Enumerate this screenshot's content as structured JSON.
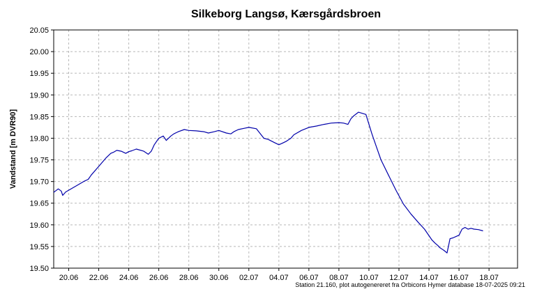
{
  "chart_data": {
    "type": "line",
    "title": "Silkeborg Langsø, Kærsgårdsbroen",
    "ylabel": "Vandstand [m DVR90]",
    "xlabel": "",
    "ylim": [
      19.5,
      20.05
    ],
    "yticks": [
      "19.50",
      "19.55",
      "19.60",
      "19.65",
      "19.70",
      "19.75",
      "19.80",
      "19.85",
      "19.90",
      "19.95",
      "20.00",
      "20.05"
    ],
    "xlim_days": [
      0,
      30.9
    ],
    "xtick_labels": [
      "20.06",
      "22.06",
      "24.06",
      "26.06",
      "28.06",
      "30.06",
      "02.07",
      "04.07",
      "06.07",
      "08.07",
      "10.07",
      "12.07",
      "14.07",
      "16.07",
      "18.07"
    ],
    "grid": true,
    "line_color": "#0000aa",
    "footnote": "Station 21.160, plot autogenereret fra Orbicons Hymer database 18-07-2025 09:21",
    "series": [
      {
        "x": [
          0,
          0.3,
          0.5,
          0.6,
          0.8,
          1.0,
          1.5,
          2.0,
          2.3,
          2.5,
          3.0,
          3.5,
          3.8,
          4.0,
          4.2,
          4.5,
          4.8,
          5.0,
          5.2,
          5.5,
          6.0,
          6.3,
          6.5,
          6.7,
          7.0,
          7.3,
          7.5,
          7.8,
          8.0,
          8.3,
          8.7,
          9.0,
          9.5,
          10.0,
          10.3,
          10.7,
          11.0,
          11.5,
          11.8,
          12.0,
          12.3,
          12.7,
          13.0,
          13.5,
          14.0,
          14.3,
          14.7,
          15.0,
          15.2,
          15.5,
          15.8,
          16.0,
          16.5,
          17.0,
          17.5,
          18.0,
          18.5,
          19.0,
          19.3,
          19.6,
          19.8,
          20.0,
          20.3,
          20.8,
          21.2,
          21.5,
          21.8,
          22.3,
          22.8,
          23.3,
          23.8,
          24.3,
          24.7,
          25.0,
          25.2,
          25.4,
          25.6,
          25.7,
          26.0,
          26.2,
          26.4,
          26.6,
          26.8,
          27.0,
          27.2,
          27.4,
          27.6,
          27.8,
          28.0,
          28.3,
          28.6
        ],
        "y": [
          19.675,
          19.683,
          19.678,
          19.668,
          19.676,
          19.68,
          19.69,
          19.7,
          19.705,
          19.715,
          19.735,
          19.755,
          19.765,
          19.768,
          19.772,
          19.77,
          19.765,
          19.769,
          19.771,
          19.775,
          19.77,
          19.763,
          19.77,
          19.785,
          19.8,
          19.805,
          19.795,
          19.805,
          19.81,
          19.815,
          19.82,
          19.818,
          19.817,
          19.815,
          19.812,
          19.815,
          19.818,
          19.812,
          19.81,
          19.815,
          19.82,
          19.823,
          19.825,
          19.822,
          19.8,
          19.797,
          19.79,
          19.785,
          19.788,
          19.793,
          19.8,
          19.808,
          19.818,
          19.825,
          19.828,
          19.832,
          19.835,
          19.836,
          19.835,
          19.832,
          19.845,
          19.852,
          19.86,
          19.855,
          19.81,
          19.78,
          19.75,
          19.715,
          19.68,
          19.648,
          19.625,
          19.605,
          19.59,
          19.575,
          19.565,
          19.558,
          19.552,
          19.548,
          19.541,
          19.535,
          19.568,
          19.57,
          19.573,
          19.576,
          19.59,
          19.594,
          19.59,
          19.592,
          19.59,
          19.589,
          19.586
        ]
      }
    ]
  }
}
